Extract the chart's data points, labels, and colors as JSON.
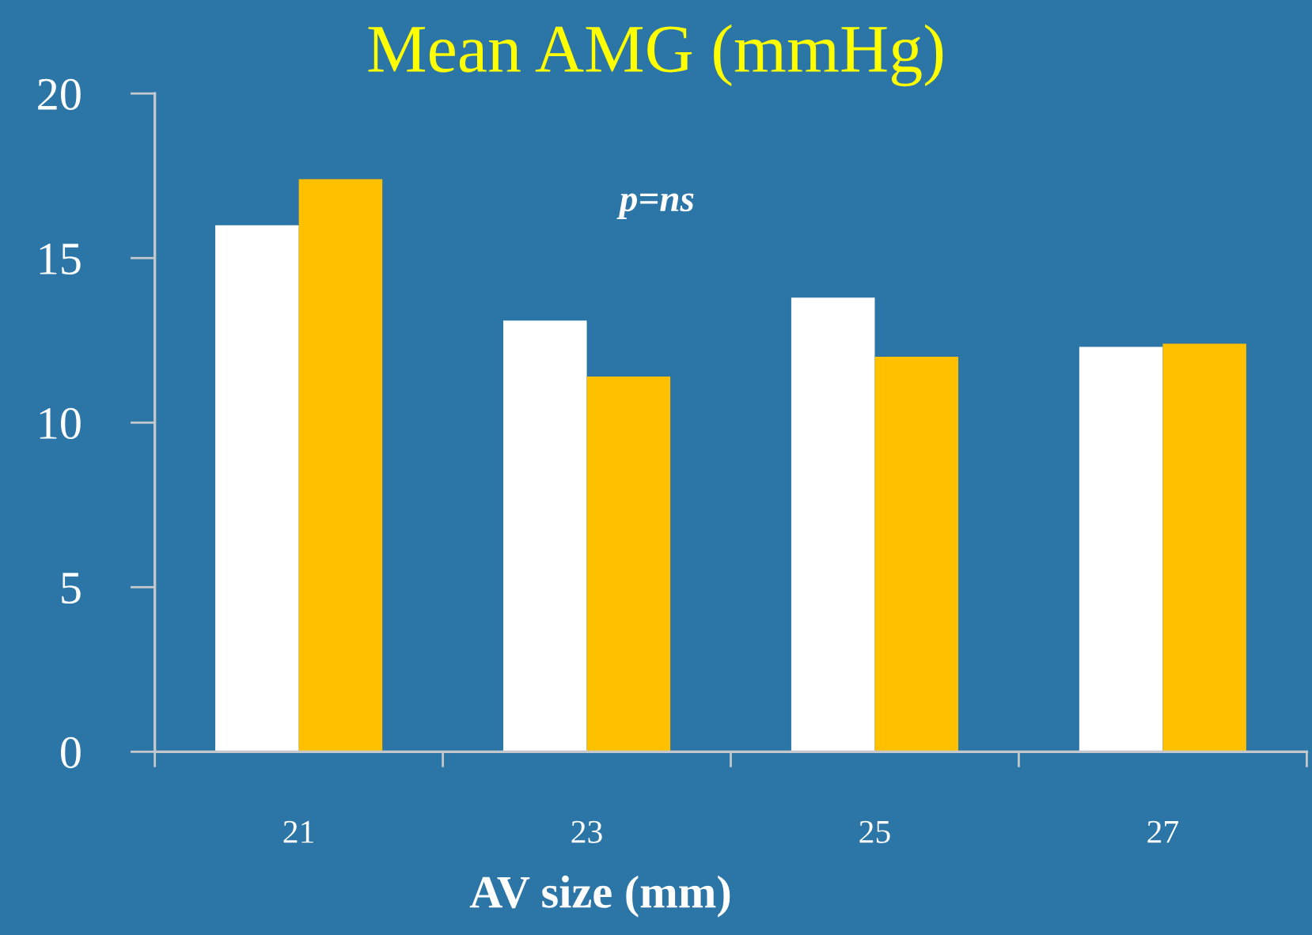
{
  "chart_data": {
    "type": "bar",
    "title": "Mean AMG (mmHg)",
    "xlabel": "AV size (mm)",
    "categories": [
      "21",
      "23",
      "25",
      "27"
    ],
    "series": [
      {
        "color": "#ffffff",
        "values": [
          16.0,
          13.1,
          13.8,
          12.3
        ]
      },
      {
        "color": "#ffc000",
        "values": [
          17.4,
          11.4,
          12.0,
          12.4
        ]
      }
    ],
    "ylim": [
      0,
      20
    ],
    "yticks": [
      0,
      5,
      10,
      15,
      20
    ],
    "annotations": [
      "p=ns"
    ]
  }
}
